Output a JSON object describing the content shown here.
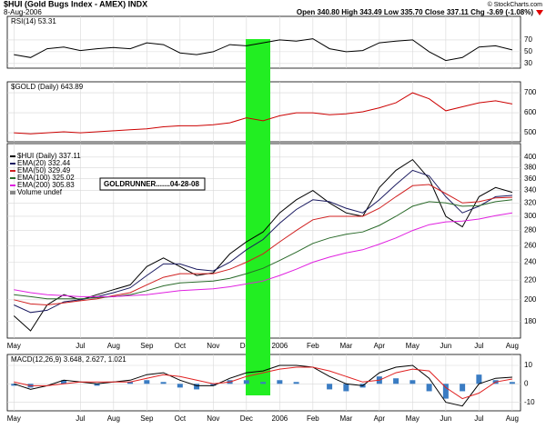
{
  "header": {
    "title": "$HUI (Gold Bugs Index - AMEX) INDX",
    "date": "8-Aug-2006",
    "quote": "Open 340.80 High 343.49 Low 335.70 Close 337.11 Chg -3.69 (-1.08%)",
    "credit": "© StockCharts.com"
  },
  "chart_data": [
    {
      "type": "line",
      "title": "RSI(14) 53.31",
      "series": [
        {
          "color": "#000000",
          "values": [
            45,
            40,
            55,
            58,
            52,
            55,
            57,
            55,
            65,
            62,
            48,
            45,
            50,
            62,
            60,
            65,
            70,
            68,
            72,
            55,
            50,
            52,
            65,
            68,
            70,
            50,
            35,
            40,
            58,
            60,
            53
          ]
        }
      ],
      "xlim": [
        -0.4,
        30.5
      ],
      "ylim": [
        22,
        110
      ],
      "yticks": [
        70,
        50,
        30
      ],
      "grid": true
    },
    {
      "type": "line",
      "title": "$GOLD (Daily) 643.89",
      "series": [
        {
          "color": "#cc0000",
          "values": [
            500,
            495,
            500,
            505,
            500,
            505,
            510,
            515,
            520,
            530,
            535,
            535,
            540,
            550,
            575,
            560,
            585,
            600,
            600,
            590,
            595,
            605,
            625,
            650,
            700,
            670,
            610,
            630,
            650,
            660,
            644
          ]
        }
      ],
      "xlim": [
        -0.4,
        30.5
      ],
      "ylim": [
        455,
        755
      ],
      "yticks": [
        700,
        600,
        500
      ],
      "grid": true
    },
    {
      "type": "line",
      "log_scale": true,
      "annotation": "GOLDRUNNER.......04-28-08",
      "volume_label": "Volume undef",
      "series": [
        {
          "name": "$HUI (Daily) 337.11",
          "color": "#000000",
          "values": [
            185,
            172,
            195,
            205,
            200,
            205,
            210,
            215,
            235,
            245,
            235,
            225,
            228,
            250,
            265,
            278,
            305,
            325,
            340,
            320,
            305,
            300,
            345,
            375,
            395,
            360,
            300,
            285,
            330,
            345,
            337
          ]
        },
        {
          "name": "EMA(20) 332.44",
          "color": "#1a1a60",
          "values": [
            195,
            188,
            190,
            198,
            200,
            203,
            207,
            212,
            225,
            238,
            238,
            232,
            230,
            240,
            255,
            268,
            290,
            310,
            325,
            322,
            312,
            305,
            325,
            350,
            375,
            365,
            330,
            305,
            315,
            330,
            332
          ]
        },
        {
          "name": "EMA(50) 329.49",
          "color": "#d02020",
          "values": [
            200,
            196,
            195,
            197,
            199,
            201,
            204,
            207,
            215,
            223,
            227,
            227,
            227,
            232,
            240,
            250,
            265,
            280,
            295,
            300,
            300,
            300,
            312,
            330,
            348,
            350,
            335,
            320,
            322,
            328,
            329
          ]
        },
        {
          "name": "EMA(100) 325.02",
          "color": "#2a6a2a",
          "values": [
            205,
            203,
            201,
            201,
            201,
            202,
            203,
            205,
            209,
            214,
            217,
            218,
            219,
            222,
            227,
            233,
            242,
            252,
            263,
            270,
            275,
            278,
            287,
            300,
            315,
            322,
            320,
            315,
            316,
            322,
            325
          ]
        },
        {
          "name": "EMA(200) 305.83",
          "color": "#e020e0",
          "values": [
            210,
            207,
            205,
            204,
            203,
            203,
            203,
            204,
            205,
            207,
            209,
            210,
            211,
            213,
            216,
            219,
            225,
            232,
            240,
            246,
            251,
            255,
            262,
            270,
            280,
            288,
            292,
            293,
            296,
            301,
            305
          ]
        }
      ],
      "xlim": [
        -0.4,
        30.5
      ],
      "ylim": [
        166,
        427
      ],
      "yticks": [
        400,
        380,
        360,
        340,
        320,
        300,
        280,
        260,
        240,
        220,
        200,
        180
      ],
      "grid": true,
      "xticks": [
        {
          "value": 0,
          "label": "May"
        },
        {
          "value": 4,
          "label": "Jul"
        },
        {
          "value": 6,
          "label": "Aug"
        },
        {
          "value": 8,
          "label": "Sep"
        },
        {
          "value": 10,
          "label": "Oct"
        },
        {
          "value": 12,
          "label": "Nov"
        },
        {
          "value": 14,
          "label": "Dec"
        },
        {
          "value": 16,
          "label": "2006"
        },
        {
          "value": 18,
          "label": "Feb"
        },
        {
          "value": 20,
          "label": "Mar"
        },
        {
          "value": 22,
          "label": "Apr"
        },
        {
          "value": 24,
          "label": "May"
        },
        {
          "value": 26,
          "label": "Jun"
        },
        {
          "value": 28,
          "label": "Jul"
        },
        {
          "value": 30,
          "label": "Aug"
        }
      ]
    },
    {
      "type": "line",
      "title": "MACD(12,26,9) 3.648, 2.627, 1.021",
      "series": [
        {
          "color": "#3a7cc3",
          "style": "bar",
          "values": [
            -1,
            -2,
            0,
            2,
            0,
            -1,
            0,
            1,
            2,
            1,
            -2,
            -3,
            -1,
            2,
            2,
            1,
            2,
            1,
            0,
            -3,
            -4,
            -2,
            4,
            3,
            2,
            -4,
            -8,
            -4,
            5,
            2,
            1
          ]
        },
        {
          "color": "#000000",
          "values": [
            0,
            -3,
            -1,
            2,
            1,
            0,
            1,
            2,
            5,
            6,
            2,
            -1,
            -1,
            3,
            6,
            7,
            10,
            10,
            9,
            4,
            0,
            -1,
            6,
            9,
            10,
            3,
            -10,
            -12,
            0,
            3,
            3.6
          ]
        },
        {
          "color": "#e02020",
          "values": [
            1,
            -1,
            -1,
            0,
            1,
            1,
            1,
            1,
            3,
            5,
            4,
            2,
            0,
            1,
            4,
            6,
            8,
            9,
            9,
            7,
            4,
            1,
            2,
            6,
            8,
            7,
            -2,
            -8,
            -5,
            1,
            2.6
          ]
        }
      ],
      "xlim": [
        -0.4,
        30.5
      ],
      "ylim": [
        -14.6,
        15.9
      ],
      "yticks": [
        10,
        0,
        -10
      ],
      "grid": true,
      "xticks": [
        {
          "value": 0,
          "label": "May"
        },
        {
          "value": 4,
          "label": "Jul"
        },
        {
          "value": 6,
          "label": "Aug"
        },
        {
          "value": 8,
          "label": "Sep"
        },
        {
          "value": 10,
          "label": "Oct"
        },
        {
          "value": 12,
          "label": "Nov"
        },
        {
          "value": 14,
          "label": "Dec"
        },
        {
          "value": 16,
          "label": "2006"
        },
        {
          "value": 18,
          "label": "Feb"
        },
        {
          "value": 20,
          "label": "Mar"
        },
        {
          "value": 22,
          "label": "Apr"
        },
        {
          "value": 24,
          "label": "May"
        },
        {
          "value": 26,
          "label": "Jun"
        },
        {
          "value": 28,
          "label": "Jul"
        },
        {
          "value": 30,
          "label": "Aug"
        }
      ]
    }
  ]
}
